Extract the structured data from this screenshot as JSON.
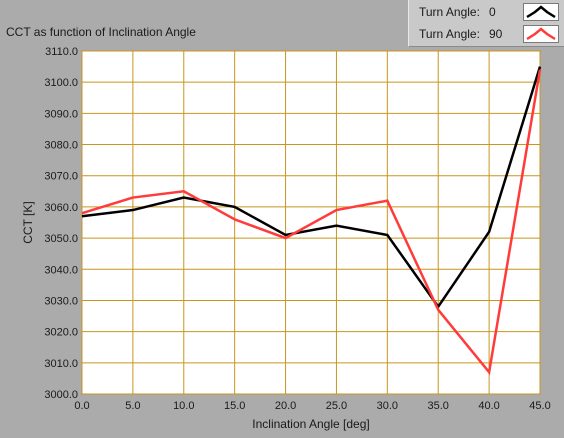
{
  "chart_data": {
    "type": "line",
    "title": "CCT as function of Inclination Angle",
    "xlabel": "Inclination Angle [deg]",
    "ylabel": "CCT [K]",
    "x": [
      0,
      5,
      10,
      15,
      20,
      25,
      30,
      35,
      40,
      45
    ],
    "x_ticks": [
      "0.0",
      "5.0",
      "10.0",
      "15.0",
      "20.0",
      "25.0",
      "30.0",
      "35.0",
      "40.0",
      "45.0"
    ],
    "y_ticks": [
      "3000.0",
      "3010.0",
      "3020.0",
      "3030.0",
      "3040.0",
      "3050.0",
      "3060.0",
      "3070.0",
      "3080.0",
      "3090.0",
      "3100.0",
      "3110.0"
    ],
    "xlim": [
      0,
      45
    ],
    "ylim": [
      3000,
      3110
    ],
    "grid": true,
    "legend_position": "top-right",
    "legend_title": "Turn Angle:",
    "series": [
      {
        "name": "0",
        "label": "Turn Angle:",
        "color": "#000000",
        "values": [
          3057,
          3059,
          3063,
          3060,
          3051,
          3054,
          3051,
          3028,
          3052,
          3105
        ]
      },
      {
        "name": "90",
        "label": "Turn Angle:",
        "color": "#ff3b3b",
        "values": [
          3058,
          3063,
          3065,
          3056,
          3050,
          3059,
          3062,
          3027,
          3007,
          3104
        ]
      }
    ],
    "colors": {
      "background": "#ababab",
      "plot_background": "#ffffff",
      "grid": "#c8961e"
    }
  }
}
